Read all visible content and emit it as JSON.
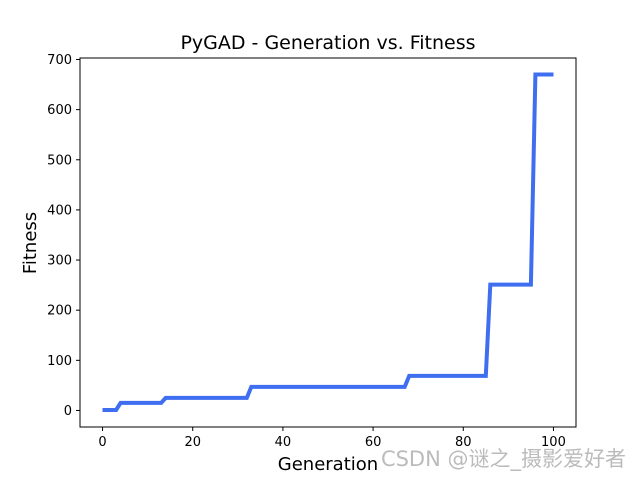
{
  "chart_data": {
    "type": "line",
    "title": "PyGAD - Generation vs. Fitness",
    "xlabel": "Generation",
    "ylabel": "Fitness",
    "xlim": [
      -5,
      105
    ],
    "ylim": [
      -33,
      703
    ],
    "xticks": [
      0,
      20,
      40,
      60,
      80,
      100
    ],
    "yticks": [
      0,
      100,
      200,
      300,
      400,
      500,
      600,
      700
    ],
    "grid": false,
    "line_color": "#3f6ff0",
    "series": [
      {
        "x": [
          0,
          3,
          4,
          13,
          14,
          32,
          33,
          67,
          68,
          85,
          86,
          95,
          96,
          100
        ],
        "values": [
          1,
          1,
          15,
          15,
          25,
          25,
          47,
          47,
          69,
          69,
          251,
          251,
          670,
          670
        ]
      }
    ]
  },
  "watermark": "CSDN @谜之_摄影爱好者"
}
